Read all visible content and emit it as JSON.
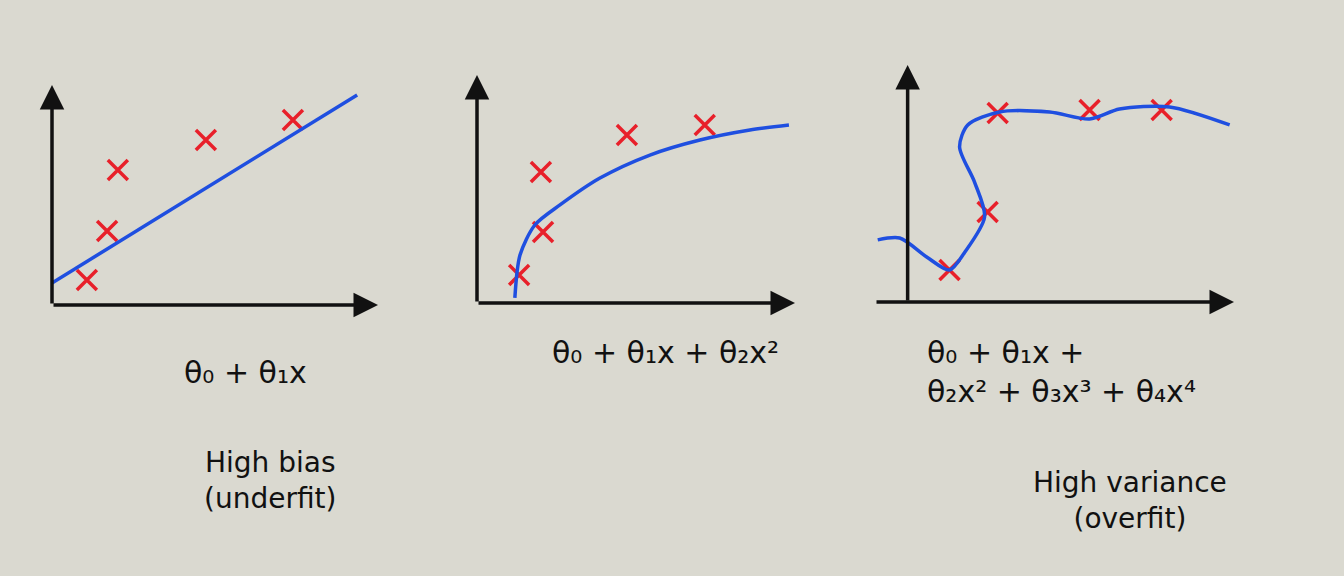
{
  "chart_data": [
    {
      "type": "scatter",
      "xlabel": "θ₀ + θ₁x",
      "annotations": [
        "High bias\n(underfit)"
      ],
      "xlim": [
        0,
        10
      ],
      "ylim": [
        0,
        10
      ],
      "tick_labels": false,
      "grid": false,
      "series": [
        {
          "type": "scatter",
          "marker": "x",
          "color": "#e8202a",
          "x": [
            1.07,
            1.69,
            2.02,
            4.72,
            7.39
          ],
          "values": [
            1.14,
            3.36,
            6.14,
            7.5,
            8.41
          ]
        },
        {
          "type": "line",
          "line_style": "solid",
          "color": "#1f4fe0",
          "x": [
            0,
            9.36
          ],
          "values": [
            1.0,
            9.55
          ]
        }
      ]
    },
    {
      "type": "scatter",
      "xlabel": "θ₀ + θ₁x + θ₂x²",
      "xlim": [
        0,
        10.5
      ],
      "ylim": [
        0,
        10
      ],
      "tick_labels": false,
      "grid": false,
      "series": [
        {
          "type": "scatter",
          "marker": "x",
          "color": "#e8202a",
          "x": [
            1.39,
            2.18,
            2.11,
            4.95,
            7.52
          ],
          "values": [
            1.23,
            3.11,
            5.75,
            7.37,
            7.81
          ]
        },
        {
          "type": "line",
          "line_style": "solid",
          "color": "#1f4fe0",
          "x": [
            1.25,
            1.42,
            1.91,
            2.74,
            4.06,
            5.71,
            7.36,
            9.01,
            10.3
          ],
          "values": [
            0.22,
            2.1,
            3.42,
            4.3,
            5.48,
            6.49,
            7.15,
            7.59,
            7.81
          ]
        }
      ]
    },
    {
      "type": "scatter",
      "xlabel": "θ₀ + θ₁x +\nθ₂x² + θ₃x³ + θ₄x⁴",
      "annotations": [
        "High variance\n(overfit)"
      ],
      "xlim": [
        -1.2,
        12
      ],
      "ylim": [
        0,
        10
      ],
      "tick_labels": false,
      "grid": false,
      "series": [
        {
          "type": "scatter",
          "marker": "x",
          "color": "#e8202a",
          "x": [
            1.54,
            2.94,
            3.31,
            6.69,
            9.34
          ],
          "values": [
            1.35,
            3.8,
            7.97,
            8.1,
            8.1
          ]
        },
        {
          "type": "line",
          "line_style": "solid",
          "color": "#1f4fe0",
          "x": [
            -1.1,
            -0.29,
            0.7,
            1.54,
            2.1,
            2.83,
            2.46,
            1.91,
            2.21,
            3.38,
            5.22,
            6.69,
            7.79,
            9.63,
            11.84
          ],
          "values": [
            2.62,
            2.7,
            1.9,
            1.35,
            2.1,
            3.59,
            5.06,
            6.54,
            7.47,
            8.02,
            8.02,
            7.72,
            8.14,
            8.23,
            7.47
          ]
        }
      ]
    }
  ]
}
